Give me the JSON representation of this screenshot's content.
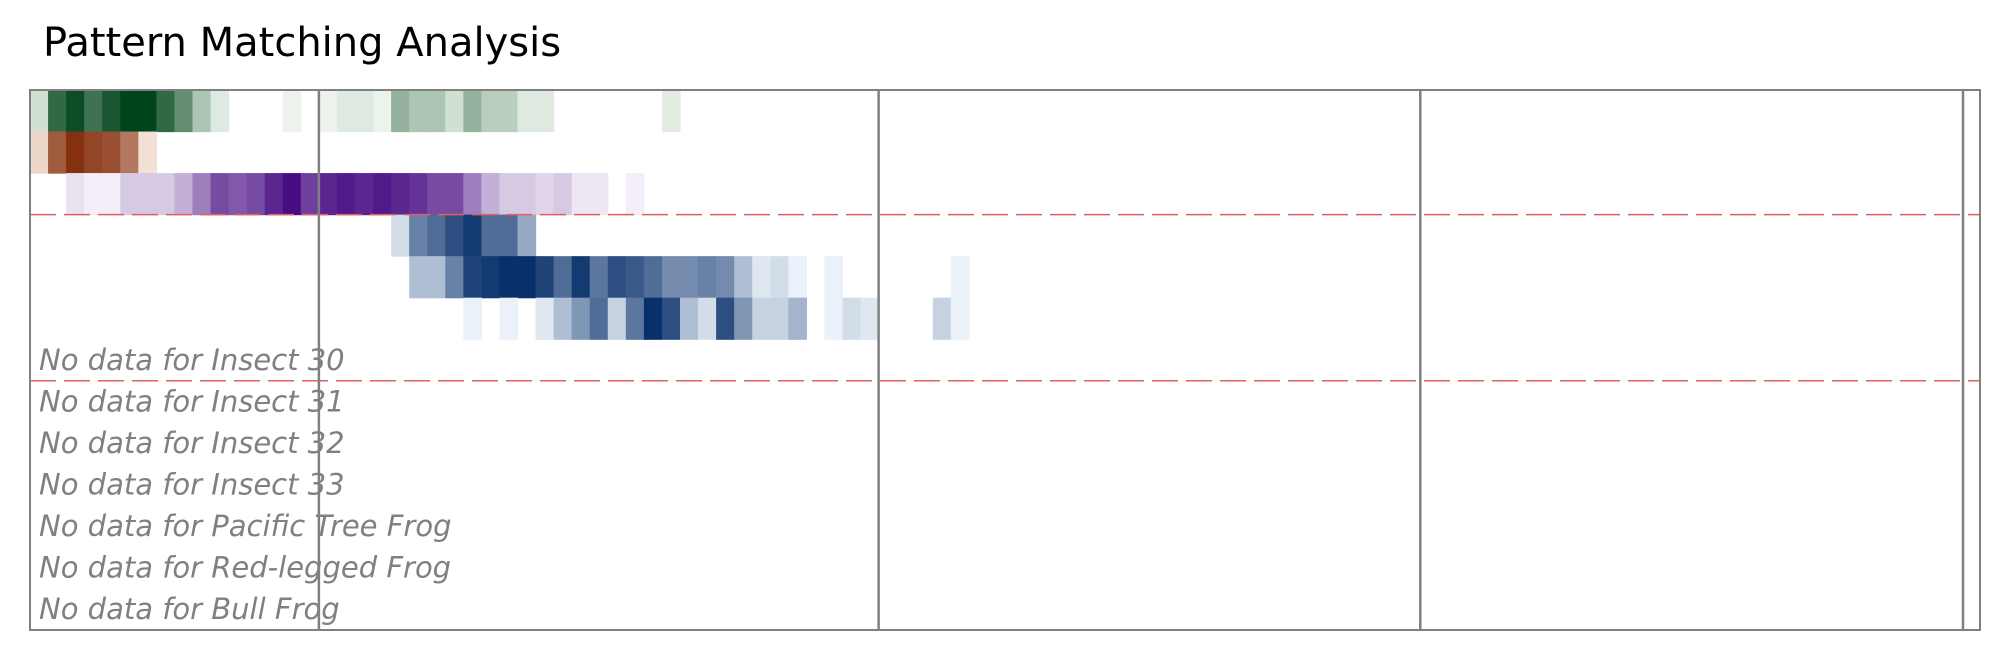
{
  "title": "Pattern Matching Analysis",
  "chart_data": {
    "type": "heatmap",
    "title": "Pattern Matching Analysis",
    "n_cols": 108,
    "row_groups": [
      3,
      4,
      3
    ],
    "vertical_dividers_at_col": [
      16,
      47,
      77,
      108
    ],
    "rows": [
      {
        "label": "",
        "palette": "greens",
        "cells": [
          [
            0,
            0.15
          ],
          [
            1,
            0.8
          ],
          [
            2,
            0.95
          ],
          [
            3,
            0.75
          ],
          [
            4,
            0.9
          ],
          [
            5,
            1.0
          ],
          [
            6,
            1.0
          ],
          [
            7,
            0.8
          ],
          [
            8,
            0.6
          ],
          [
            9,
            0.3
          ],
          [
            10,
            0.1
          ],
          [
            14,
            0.05
          ],
          [
            16,
            0.05
          ],
          [
            17,
            0.1
          ],
          [
            18,
            0.1
          ],
          [
            19,
            0.05
          ],
          [
            20,
            0.4
          ],
          [
            21,
            0.3
          ],
          [
            22,
            0.3
          ],
          [
            23,
            0.15
          ],
          [
            24,
            0.4
          ],
          [
            25,
            0.25
          ],
          [
            26,
            0.25
          ],
          [
            27,
            0.1
          ],
          [
            28,
            0.1
          ],
          [
            35,
            0.08
          ]
        ]
      },
      {
        "label": "",
        "palette": "oranges",
        "cells": [
          [
            0,
            0.15
          ],
          [
            1,
            0.75
          ],
          [
            2,
            0.95
          ],
          [
            3,
            0.85
          ],
          [
            4,
            0.8
          ],
          [
            5,
            0.6
          ],
          [
            6,
            0.1
          ]
        ]
      },
      {
        "label": "",
        "palette": "purples",
        "cells": [
          [
            2,
            0.1
          ],
          [
            3,
            0.05
          ],
          [
            4,
            0.05
          ],
          [
            5,
            0.2
          ],
          [
            6,
            0.2
          ],
          [
            7,
            0.2
          ],
          [
            8,
            0.3
          ],
          [
            9,
            0.5
          ],
          [
            10,
            0.7
          ],
          [
            11,
            0.65
          ],
          [
            12,
            0.7
          ],
          [
            13,
            0.85
          ],
          [
            14,
            0.95
          ],
          [
            15,
            0.75
          ],
          [
            16,
            0.85
          ],
          [
            17,
            0.9
          ],
          [
            18,
            0.85
          ],
          [
            19,
            0.9
          ],
          [
            20,
            0.85
          ],
          [
            21,
            0.8
          ],
          [
            22,
            0.7
          ],
          [
            23,
            0.7
          ],
          [
            24,
            0.5
          ],
          [
            25,
            0.3
          ],
          [
            26,
            0.2
          ],
          [
            27,
            0.2
          ],
          [
            28,
            0.15
          ],
          [
            29,
            0.2
          ],
          [
            30,
            0.08
          ],
          [
            31,
            0.08
          ],
          [
            33,
            0.05
          ]
        ]
      },
      {
        "label": "",
        "palette": "blues",
        "cells": [
          [
            20,
            0.15
          ],
          [
            21,
            0.6
          ],
          [
            22,
            0.7
          ],
          [
            23,
            0.85
          ],
          [
            24,
            0.95
          ],
          [
            25,
            0.7
          ],
          [
            26,
            0.7
          ],
          [
            27,
            0.4
          ]
        ]
      },
      {
        "label": "",
        "palette": "blues",
        "cells": [
          [
            21,
            0.3
          ],
          [
            22,
            0.3
          ],
          [
            23,
            0.6
          ],
          [
            24,
            0.9
          ],
          [
            25,
            0.95
          ],
          [
            26,
            1.0
          ],
          [
            27,
            1.0
          ],
          [
            28,
            0.9
          ],
          [
            29,
            0.7
          ],
          [
            30,
            0.95
          ],
          [
            31,
            0.65
          ],
          [
            32,
            0.85
          ],
          [
            33,
            0.8
          ],
          [
            34,
            0.7
          ],
          [
            35,
            0.55
          ],
          [
            36,
            0.55
          ],
          [
            37,
            0.6
          ],
          [
            38,
            0.55
          ],
          [
            39,
            0.3
          ],
          [
            40,
            0.1
          ],
          [
            41,
            0.15
          ],
          [
            42,
            0.05
          ],
          [
            44,
            0.05
          ],
          [
            51,
            0.05
          ]
        ]
      },
      {
        "label": "",
        "palette": "blues",
        "cells": [
          [
            24,
            0.05
          ],
          [
            26,
            0.05
          ],
          [
            28,
            0.1
          ],
          [
            29,
            0.3
          ],
          [
            30,
            0.5
          ],
          [
            31,
            0.7
          ],
          [
            32,
            0.2
          ],
          [
            33,
            0.65
          ],
          [
            34,
            1.0
          ],
          [
            35,
            0.85
          ],
          [
            36,
            0.3
          ],
          [
            37,
            0.15
          ],
          [
            38,
            0.85
          ],
          [
            39,
            0.5
          ],
          [
            40,
            0.2
          ],
          [
            41,
            0.2
          ],
          [
            42,
            0.35
          ],
          [
            44,
            0.05
          ],
          [
            45,
            0.15
          ],
          [
            46,
            0.1
          ],
          [
            50,
            0.2
          ],
          [
            51,
            0.05
          ]
        ]
      },
      {
        "label": "No data for Insect 30",
        "cells": []
      },
      {
        "label": "No data for Insect 31",
        "cells": []
      },
      {
        "label": "No data for Insect 32",
        "cells": []
      },
      {
        "label": "No data for Insect 33",
        "cells": []
      },
      {
        "label": "No data for Pacific Tree Frog",
        "cells": []
      },
      {
        "label": "No data for Red-legged Frog",
        "cells": []
      },
      {
        "label": "No data for Bull Frog",
        "cells": []
      }
    ],
    "palettes": {
      "greens": [
        "#f7fcf5",
        "#00441b"
      ],
      "oranges": [
        "#fff5eb",
        "#7f2704"
      ],
      "purples": [
        "#fcfbfd",
        "#3f007d"
      ],
      "blues": [
        "#f7fbff",
        "#08306b"
      ]
    },
    "divider_color": "#e06060",
    "frame_color": "#808080"
  }
}
